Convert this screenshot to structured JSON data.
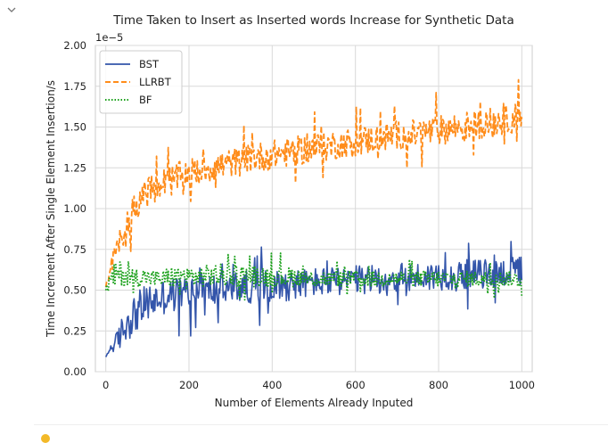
{
  "page": {
    "collapse_icon": "chevron-down-icon",
    "footer_icon": "lightbulb-icon",
    "footer_icon_color": "#f3b928"
  },
  "chart_data": {
    "type": "line",
    "title": "Time Taken to Insert as Inserted words Increase for Synthetic Data",
    "xlabel": "Number of Elements Already Inputed",
    "ylabel": "Time Increment After Single Element Insertion/s",
    "y_scale_label": "1e−5",
    "xlim": [
      -25,
      1025
    ],
    "ylim": [
      0.0,
      2.0
    ],
    "x_ticks": [
      0,
      200,
      400,
      600,
      800,
      1000
    ],
    "x_tick_labels": [
      "0",
      "200",
      "400",
      "600",
      "800",
      "1000"
    ],
    "y_ticks": [
      0.0,
      0.25,
      0.5,
      0.75,
      1.0,
      1.25,
      1.5,
      1.75,
      2.0
    ],
    "y_tick_labels": [
      "0.00",
      "0.25",
      "0.50",
      "0.75",
      "1.00",
      "1.25",
      "1.50",
      "1.75",
      "2.00"
    ],
    "grid": true,
    "legend_position": "top-left",
    "series": [
      {
        "name": "BST",
        "color": "#3355aa",
        "style": "solid",
        "x": [
          0,
          10,
          20,
          30,
          40,
          50,
          60,
          80,
          100,
          120,
          140,
          160,
          180,
          200,
          225,
          250,
          275,
          300,
          325,
          350,
          375,
          400,
          425,
          450,
          475,
          500,
          525,
          550,
          575,
          600,
          625,
          650,
          675,
          700,
          725,
          750,
          775,
          800,
          825,
          850,
          875,
          900,
          925,
          950,
          975,
          1000
        ],
        "y": [
          0.09,
          0.14,
          0.16,
          0.2,
          0.25,
          0.3,
          0.33,
          0.38,
          0.42,
          0.44,
          0.46,
          0.47,
          0.48,
          0.49,
          0.5,
          0.5,
          0.51,
          0.51,
          0.52,
          0.52,
          0.53,
          0.53,
          0.53,
          0.54,
          0.54,
          0.55,
          0.55,
          0.55,
          0.56,
          0.56,
          0.56,
          0.57,
          0.57,
          0.57,
          0.58,
          0.58,
          0.58,
          0.59,
          0.59,
          0.59,
          0.6,
          0.6,
          0.6,
          0.61,
          0.61,
          0.62
        ],
        "noise": [
          0.0,
          0.02,
          0.04,
          0.08,
          0.1,
          0.12,
          0.12,
          0.12,
          0.12,
          0.11,
          0.11,
          0.11,
          0.11,
          0.11,
          0.1,
          0.1,
          0.1,
          0.1,
          0.1,
          0.1,
          0.1,
          0.1,
          0.1,
          0.1,
          0.09,
          0.09,
          0.09,
          0.09,
          0.09,
          0.09,
          0.09,
          0.09,
          0.09,
          0.09,
          0.09,
          0.09,
          0.09,
          0.09,
          0.09,
          0.09,
          0.09,
          0.09,
          0.09,
          0.09,
          0.09,
          0.09
        ]
      },
      {
        "name": "LLRBT",
        "color": "#ff8c1a",
        "style": "dashed",
        "x": [
          0,
          10,
          20,
          30,
          40,
          50,
          60,
          80,
          100,
          120,
          140,
          160,
          180,
          200,
          225,
          250,
          275,
          300,
          325,
          350,
          375,
          400,
          425,
          450,
          475,
          500,
          525,
          550,
          575,
          600,
          625,
          650,
          675,
          700,
          725,
          750,
          775,
          800,
          825,
          850,
          875,
          900,
          925,
          950,
          975,
          1000
        ],
        "y": [
          0.5,
          0.62,
          0.7,
          0.76,
          0.82,
          0.9,
          0.97,
          1.05,
          1.1,
          1.13,
          1.16,
          1.18,
          1.2,
          1.22,
          1.23,
          1.25,
          1.26,
          1.28,
          1.29,
          1.31,
          1.32,
          1.33,
          1.34,
          1.35,
          1.36,
          1.37,
          1.38,
          1.39,
          1.4,
          1.41,
          1.42,
          1.43,
          1.44,
          1.45,
          1.45,
          1.46,
          1.47,
          1.48,
          1.49,
          1.5,
          1.51,
          1.52,
          1.53,
          1.54,
          1.55,
          1.57
        ],
        "noise": [
          0.03,
          0.05,
          0.06,
          0.07,
          0.08,
          0.08,
          0.09,
          0.09,
          0.09,
          0.09,
          0.09,
          0.09,
          0.09,
          0.09,
          0.09,
          0.09,
          0.09,
          0.09,
          0.09,
          0.09,
          0.09,
          0.09,
          0.09,
          0.09,
          0.09,
          0.09,
          0.09,
          0.09,
          0.09,
          0.09,
          0.09,
          0.09,
          0.09,
          0.09,
          0.09,
          0.09,
          0.09,
          0.09,
          0.09,
          0.09,
          0.09,
          0.09,
          0.09,
          0.09,
          0.09,
          0.09
        ]
      },
      {
        "name": "BF",
        "color": "#1aa01a",
        "style": "dotted",
        "x": [
          0,
          10,
          20,
          30,
          40,
          50,
          60,
          80,
          100,
          120,
          140,
          160,
          180,
          200,
          225,
          250,
          275,
          300,
          325,
          350,
          375,
          400,
          425,
          450,
          475,
          500,
          525,
          550,
          575,
          600,
          625,
          650,
          675,
          700,
          725,
          750,
          775,
          800,
          825,
          850,
          875,
          900,
          925,
          950,
          975,
          1000
        ],
        "y": [
          0.5,
          0.55,
          0.58,
          0.6,
          0.6,
          0.59,
          0.58,
          0.58,
          0.58,
          0.57,
          0.57,
          0.58,
          0.58,
          0.58,
          0.58,
          0.59,
          0.59,
          0.59,
          0.59,
          0.59,
          0.59,
          0.58,
          0.58,
          0.58,
          0.58,
          0.57,
          0.57,
          0.57,
          0.57,
          0.57,
          0.57,
          0.57,
          0.57,
          0.57,
          0.57,
          0.57,
          0.57,
          0.57,
          0.57,
          0.57,
          0.57,
          0.57,
          0.57,
          0.57,
          0.57,
          0.56
        ],
        "noise": [
          0.02,
          0.06,
          0.08,
          0.08,
          0.08,
          0.07,
          0.06,
          0.06,
          0.05,
          0.05,
          0.06,
          0.07,
          0.07,
          0.07,
          0.07,
          0.07,
          0.07,
          0.07,
          0.07,
          0.07,
          0.07,
          0.06,
          0.06,
          0.06,
          0.05,
          0.05,
          0.05,
          0.05,
          0.05,
          0.05,
          0.05,
          0.05,
          0.05,
          0.05,
          0.05,
          0.05,
          0.05,
          0.05,
          0.05,
          0.05,
          0.05,
          0.05,
          0.05,
          0.05,
          0.05,
          0.05
        ]
      }
    ]
  }
}
